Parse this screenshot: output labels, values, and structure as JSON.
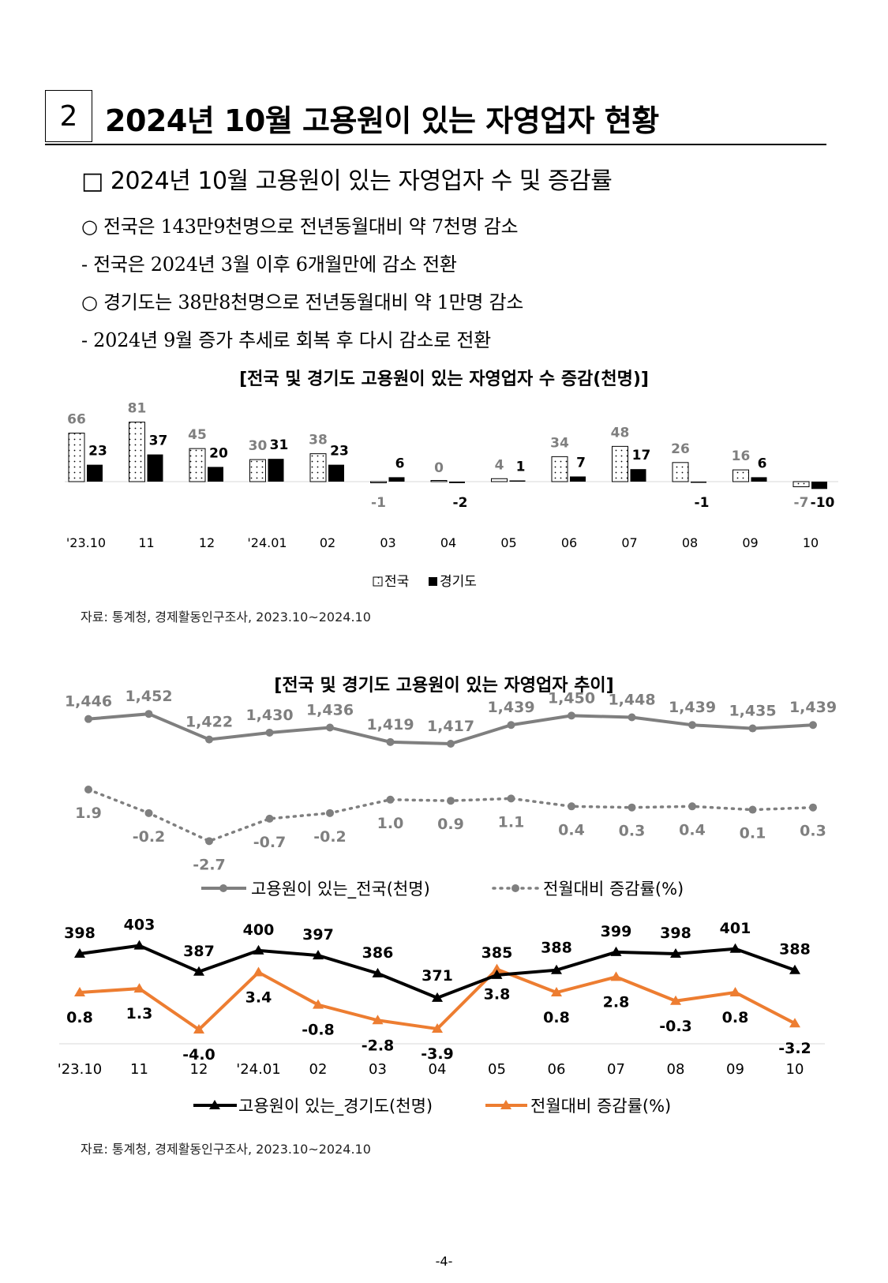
{
  "section": {
    "number": "2",
    "title": "2024년 10월 고용원이 있는 자영업자 현황"
  },
  "subheading": "□ 2024년 10월 고용원이 있는 자영업자 수 및 증감률",
  "bullets": [
    "○ 전국은 143만9천명으로 전년동월대비 약 7천명 감소",
    "- 전국은 2024년 3월 이후 6개월만에 감소 전환",
    "○ 경기도는 38만8천명으로 전년동월대비 약 1만명 감소",
    "- 2024년 9월 증가 추세로  회복 후 다시 감소로 전환"
  ],
  "chart1_title": "[전국 및 경기도 고용원이 있는 자영업자 수 증감(천명)]",
  "chart2_title": "[전국 및 경기도 고용원이 있는 자영업자 추이]",
  "source1": "자료: 통계청, 경제활동인구조사, 2023.10~2024.10",
  "source2": "자료: 통계청, 경제활동인구조사, 2023.10~2024.10",
  "page_number": "-4-",
  "colors": {
    "gray": "#7f7f7f",
    "black": "#000000",
    "orange": "#ed7d31"
  },
  "chart_data": [
    {
      "type": "bar",
      "title": "[전국 및 경기도 고용원이 있는 자영업자 수 증감(천명)]",
      "categories": [
        "'23.10",
        "11",
        "12",
        "'24.01",
        "02",
        "03",
        "04",
        "05",
        "06",
        "07",
        "08",
        "09",
        "10"
      ],
      "series": [
        {
          "name": "전국",
          "values": [
            66,
            81,
            45,
            30,
            38,
            -1,
            0,
            4,
            34,
            48,
            26,
            16,
            -7
          ]
        },
        {
          "name": "경기도",
          "values": [
            23,
            37,
            20,
            31,
            23,
            6,
            -2,
            1,
            7,
            17,
            -1,
            6,
            -10
          ]
        }
      ],
      "legend": "bottom"
    },
    {
      "type": "line",
      "categories": [
        "'23.10",
        "11",
        "12",
        "'24.01",
        "02",
        "03",
        "04",
        "05",
        "06",
        "07",
        "08",
        "09",
        "10"
      ],
      "series": [
        {
          "name": "고용원이 있는_전국(천명)",
          "values": [
            1446,
            1452,
            1422,
            1430,
            1436,
            1419,
            1417,
            1439,
            1450,
            1448,
            1439,
            1435,
            1439
          ],
          "labels": [
            "1,446",
            "1,452",
            "1,422",
            "1,430",
            "1,436",
            "1,419",
            "1,417",
            "1,439",
            "1,450",
            "1,448",
            "1,439",
            "1,435",
            "1,439"
          ]
        },
        {
          "name": "전월대비 증감률(%)",
          "values": [
            1.9,
            -0.2,
            -2.7,
            -0.7,
            -0.2,
            1.0,
            0.9,
            1.1,
            0.4,
            0.3,
            0.4,
            0.1,
            0.3
          ],
          "labels": [
            "1.9",
            "-0.2",
            "-2.7",
            "-0.7",
            "-0.2",
            "1.0",
            "0.9",
            "1.1",
            "0.4",
            "0.3",
            "0.4",
            "0.1",
            "0.3"
          ]
        }
      ],
      "legend": "bottom"
    },
    {
      "type": "line",
      "categories": [
        "'23.10",
        "11",
        "12",
        "'24.01",
        "02",
        "03",
        "04",
        "05",
        "06",
        "07",
        "08",
        "09",
        "10"
      ],
      "series": [
        {
          "name": "고용원이 있는_경기도(천명)",
          "values": [
            398,
            403,
            387,
            400,
            397,
            386,
            371,
            385,
            388,
            399,
            398,
            401,
            388
          ],
          "labels": [
            "398",
            "403",
            "387",
            "400",
            "397",
            "386",
            "371",
            "385",
            "388",
            "399",
            "398",
            "401",
            "388"
          ]
        },
        {
          "name": "전월대비 증감률(%)",
          "values": [
            0.8,
            1.3,
            -4.0,
            3.4,
            -0.8,
            -2.8,
            -3.9,
            3.8,
            0.8,
            2.8,
            -0.3,
            0.8,
            -3.2
          ],
          "labels": [
            "0.8",
            "1.3",
            "-4.0",
            "3.4",
            "-0.8",
            "-2.8",
            "-3.9",
            "3.8",
            "0.8",
            "2.8",
            "-0.3",
            "0.8",
            "-3.2"
          ]
        }
      ],
      "legend": "bottom"
    }
  ]
}
